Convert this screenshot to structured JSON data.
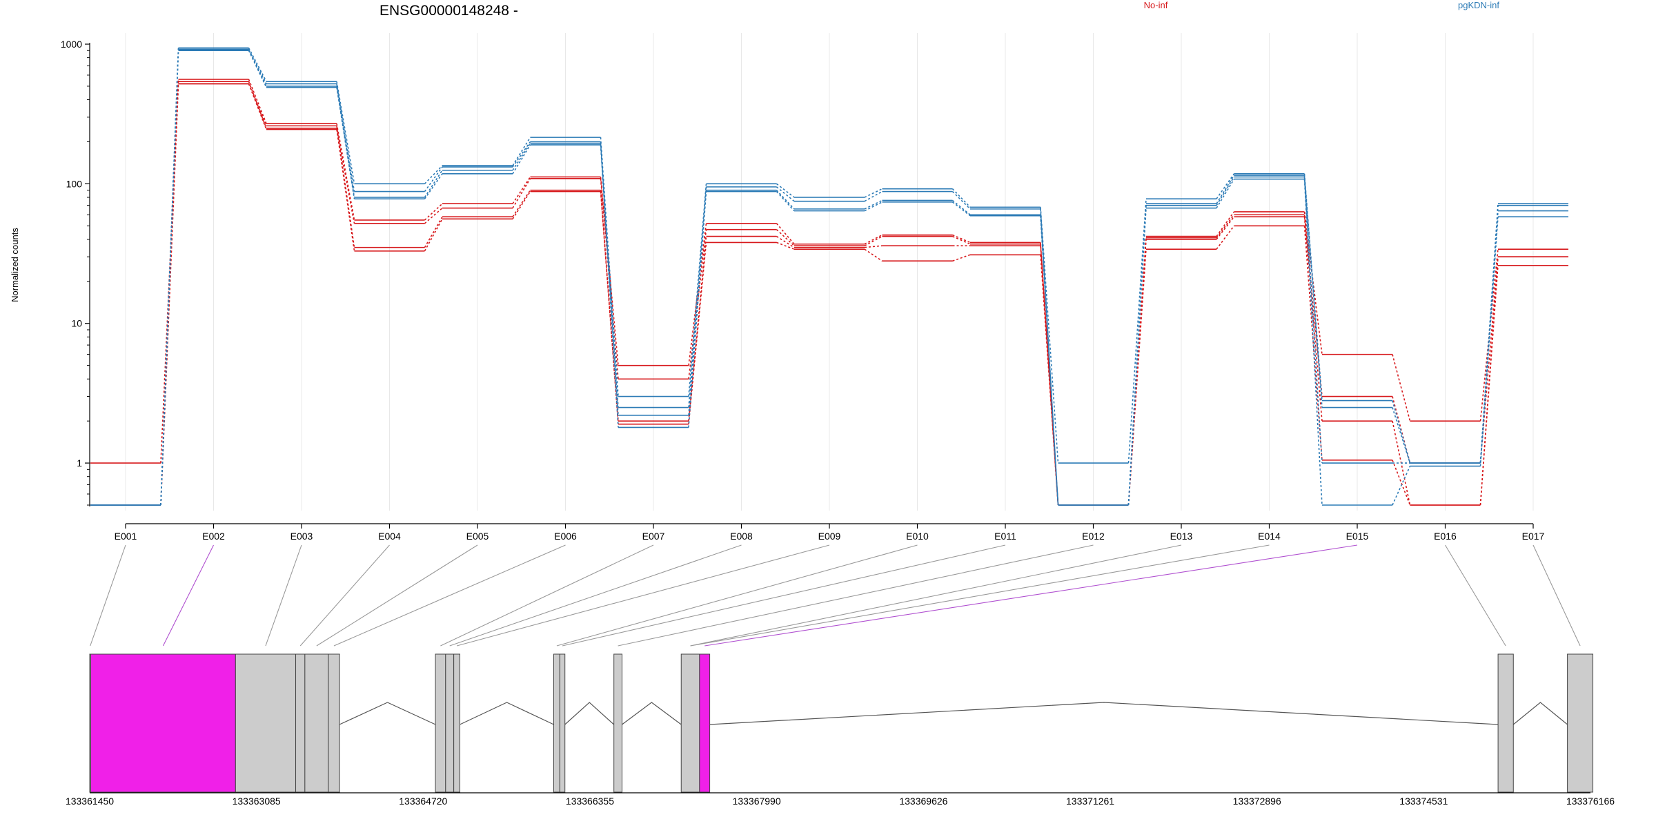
{
  "chart_data": {
    "type": "line",
    "title": "ENSG00000148248 -",
    "ylabel": "Normalized counts",
    "yscale": "log",
    "ylim": [
      0.5,
      1000
    ],
    "yticks": [
      1,
      10,
      100,
      1000
    ],
    "ytick_labels": [
      "1",
      "10",
      "100",
      "1000"
    ],
    "categories": [
      "E001",
      "E002",
      "E003",
      "E004",
      "E005",
      "E006",
      "E007",
      "E008",
      "E009",
      "E010",
      "E011",
      "E012",
      "E013",
      "E014",
      "E015",
      "E016",
      "E017"
    ],
    "grid": "vertical",
    "legend": [
      {
        "name": "No-inf",
        "color": "#d7191c"
      },
      {
        "name": "pgKDN-inf",
        "color": "#2c7bb6"
      }
    ],
    "series": [
      {
        "group": "No-inf",
        "color": "#d7191c",
        "values": [
          1,
          560,
          270,
          55,
          72,
          112,
          5,
          52,
          37,
          43,
          38,
          0.5,
          42,
          63,
          6,
          2,
          34
        ]
      },
      {
        "group": "No-inf",
        "color": "#d7191c",
        "values": [
          0.5,
          540,
          250,
          52,
          67,
          109,
          4,
          47,
          36,
          42,
          37,
          0.5,
          41,
          60,
          3,
          1,
          30
        ]
      },
      {
        "group": "No-inf",
        "color": "#d7191c",
        "values": [
          0.5,
          520,
          260,
          35,
          58,
          90,
          2,
          42,
          35,
          36,
          36,
          0.5,
          40,
          58,
          2,
          0.5,
          30
        ]
      },
      {
        "group": "No-inf",
        "color": "#d7191c",
        "values": [
          0.5,
          520,
          245,
          33,
          56,
          88,
          1.9,
          38,
          34,
          28,
          31,
          0.5,
          34,
          50,
          1.05,
          0.5,
          26
        ]
      },
      {
        "group": "pgKDN-inf",
        "color": "#2c7bb6",
        "values": [
          0.5,
          940,
          540,
          100,
          135,
          215,
          3,
          100,
          80,
          92,
          68,
          1,
          78,
          118,
          2.8,
          1,
          72
        ]
      },
      {
        "group": "pgKDN-inf",
        "color": "#2c7bb6",
        "values": [
          0.5,
          920,
          520,
          88,
          132,
          200,
          2.5,
          95,
          75,
          88,
          66,
          0.5,
          72,
          115,
          2.5,
          1,
          70
        ]
      },
      {
        "group": "pgKDN-inf",
        "color": "#2c7bb6",
        "values": [
          0.5,
          910,
          500,
          80,
          125,
          195,
          2.2,
          90,
          66,
          76,
          60,
          0.5,
          70,
          112,
          1,
          1,
          64
        ]
      },
      {
        "group": "pgKDN-inf",
        "color": "#2c7bb6",
        "values": [
          0.5,
          900,
          490,
          78,
          118,
          190,
          1.8,
          88,
          64,
          74,
          59,
          0.5,
          67,
          108,
          0.5,
          0.95,
          58
        ]
      }
    ],
    "gene_model": {
      "axis_ticks": [
        "133361450",
        "133363085",
        "133364720",
        "133366355",
        "133367990",
        "133369626",
        "133371261",
        "133372896",
        "133374531",
        "133376166"
      ],
      "highlight_color": "#f020e8",
      "exon_color": "#cccccc",
      "connector_color": "#999999",
      "highlight_connector_color": "#b050d0",
      "exons": [
        {
          "id": "E001",
          "start": 133361450,
          "end": 133361460,
          "highlight": false
        },
        {
          "id": "E002",
          "start": 133361460,
          "end": 133362880,
          "highlight": true
        },
        {
          "id": "E003",
          "start": 133362880,
          "end": 133363470,
          "highlight": false
        },
        {
          "id": "E004",
          "start": 133363470,
          "end": 133363560,
          "highlight": false
        },
        {
          "id": "E005",
          "start": 133363560,
          "end": 133363790,
          "highlight": false
        },
        {
          "id": "E006",
          "start": 133363790,
          "end": 133363900,
          "highlight": false
        },
        {
          "id": "E007",
          "start": 133364840,
          "end": 133364940,
          "highlight": false
        },
        {
          "id": "E008",
          "start": 133364940,
          "end": 133365020,
          "highlight": false
        },
        {
          "id": "E009",
          "start": 133365020,
          "end": 133365080,
          "highlight": false
        },
        {
          "id": "E010",
          "start": 133366000,
          "end": 133366060,
          "highlight": false
        },
        {
          "id": "E011",
          "start": 133366060,
          "end": 133366110,
          "highlight": false
        },
        {
          "id": "E012",
          "start": 133366590,
          "end": 133366670,
          "highlight": false
        },
        {
          "id": "E013",
          "start": 133367250,
          "end": 133367430,
          "highlight": false
        },
        {
          "id": "E014",
          "start": 133367430,
          "end": 133367530,
          "highlight": true
        },
        {
          "id": "E015",
          "start": 133375260,
          "end": 133375410,
          "highlight": false
        },
        {
          "id": "E016",
          "start": 133375940,
          "end": 133376190,
          "highlight": false
        }
      ],
      "mapping": [
        {
          "label": "E001",
          "exon": 0,
          "highlight": false
        },
        {
          "label": "E002",
          "exon": 1,
          "highlight": true
        },
        {
          "label": "E003",
          "exon": 2,
          "highlight": false
        },
        {
          "label": "E004",
          "exon": 3,
          "highlight": false
        },
        {
          "label": "E005",
          "exon": 4,
          "highlight": false
        },
        {
          "label": "E006",
          "exon": 5,
          "highlight": false
        },
        {
          "label": "E007",
          "exon": 6,
          "highlight": false
        },
        {
          "label": "E008",
          "exon": 7,
          "highlight": false
        },
        {
          "label": "E009",
          "exon": 8,
          "highlight": false
        },
        {
          "label": "E010",
          "exon": 9,
          "highlight": false
        },
        {
          "label": "E011",
          "exon": 10,
          "highlight": false
        },
        {
          "label": "E012",
          "exon": 11,
          "highlight": false
        },
        {
          "label": "E013",
          "exon": 12,
          "highlight": false
        },
        {
          "label": "E014",
          "exon": 12,
          "highlight": false
        },
        {
          "label": "E015",
          "exon": 13,
          "highlight": true
        },
        {
          "label": "E016",
          "exon": 14,
          "highlight": false
        },
        {
          "label": "E017",
          "exon": 15,
          "highlight": false
        }
      ]
    }
  }
}
